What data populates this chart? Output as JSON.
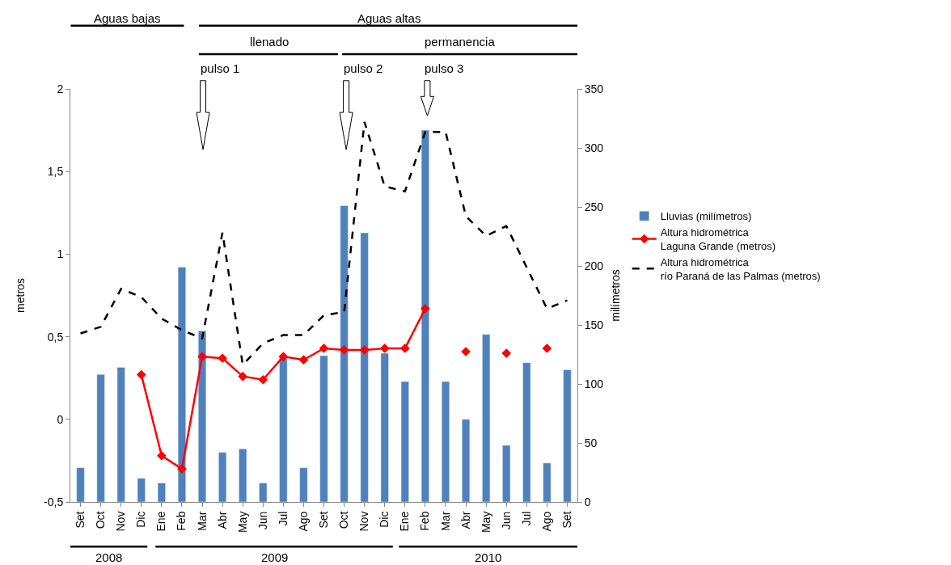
{
  "chart_data": {
    "type": "bar",
    "xlabel": null,
    "categories": [
      "Set",
      "Oct",
      "Nov",
      "Dic",
      "Ene",
      "Feb",
      "Mar",
      "Abr",
      "May",
      "Jun",
      "Jul",
      "Ago",
      "Set",
      "Oct",
      "Nov",
      "Dic",
      "Ene",
      "Feb",
      "Mar",
      "Abr",
      "May",
      "Jun",
      "Jul",
      "Ago",
      "Set"
    ],
    "ylabel": "metros",
    "y2label": "milímetros",
    "ylim": [
      -0.5,
      2
    ],
    "yticks": [
      {
        "value": -0.5,
        "label": "-0,5"
      },
      0,
      {
        "value": 0.5,
        "label": "0,5"
      },
      1,
      {
        "value": 1.5,
        "label": "1,5"
      },
      2
    ],
    "y2lim": [
      0,
      350
    ],
    "y2ticks": [
      0,
      50,
      100,
      150,
      200,
      250,
      300,
      350
    ],
    "legend": "right",
    "series": [
      {
        "name": "Lluvias (milímetros)",
        "axis": "y2",
        "color": "#4f81bd",
        "values": [
          29,
          108,
          114,
          20,
          16,
          199,
          145,
          42,
          45,
          16,
          122,
          29,
          124,
          251,
          228,
          126,
          102,
          315,
          102,
          70,
          142,
          48,
          118,
          33,
          112
        ]
      },
      {
        "name": "Altura hidrométrica\nLaguna Grande (metros)",
        "type": "line",
        "axis": "y",
        "color": "#ff0000",
        "marker": "diamond",
        "line_style": "solid",
        "values": [
          null,
          null,
          null,
          0.27,
          -0.22,
          -0.3,
          0.38,
          0.37,
          0.26,
          0.24,
          0.38,
          0.36,
          0.43,
          0.42,
          0.42,
          0.43,
          0.43,
          0.67,
          null,
          0.41,
          null,
          0.4,
          null,
          0.43,
          null
        ]
      },
      {
        "name": "Altura hidrométrica\nrío Paraná de las Palmas (metros)",
        "type": "line",
        "axis": "y",
        "color": "#000000",
        "marker": "none",
        "line_style": "dashed",
        "values": [
          0.52,
          0.56,
          0.79,
          0.74,
          0.61,
          0.54,
          0.49,
          1.13,
          0.33,
          0.46,
          0.51,
          0.51,
          0.63,
          0.65,
          1.8,
          1.41,
          1.38,
          1.74,
          1.74,
          1.23,
          1.11,
          1.17,
          0.92,
          0.67,
          0.72
        ]
      }
    ],
    "annotations": [
      "Aguas bajas",
      "Aguas altas",
      "llenado",
      "permanencia",
      "pulso 1",
      "pulso 2",
      "pulso 3",
      "2008",
      "2009",
      "2010"
    ]
  }
}
